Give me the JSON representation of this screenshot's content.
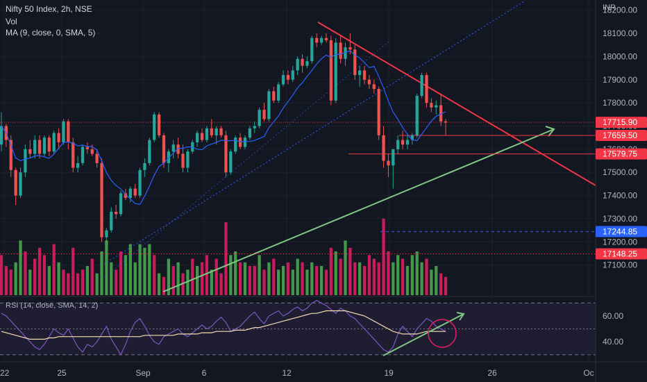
{
  "header": {
    "symbol_line": "Nifty 50 Index, 2h, NSE",
    "volume_label": "Vol",
    "ma_label": "MA (9, close, 0, SMA, 5)",
    "currency": "INR"
  },
  "rsi": {
    "label": "RSI (14, close, SMA, 14, 2)",
    "ticks": [
      "60.00",
      "40.00"
    ]
  },
  "price_axis": {
    "ticks": [
      "18200.00",
      "18100.00",
      "18000.00",
      "17900.00",
      "17800.00",
      "17700.00",
      "17600.00",
      "17500.00",
      "17400.00",
      "17300.00",
      "17200.00",
      "17100.00"
    ]
  },
  "price_labels": [
    {
      "value": 17715.9,
      "text": "17715.90",
      "color": "#f23645"
    },
    {
      "value": 17659.5,
      "text": "17659.50",
      "color": "#f23645"
    },
    {
      "value": 17579.75,
      "text": "17579.75",
      "color": "#f23645"
    },
    {
      "value": 17244.85,
      "text": "17244.85",
      "color": "#2962ff"
    },
    {
      "value": 17148.25,
      "text": "17148.25",
      "color": "#f23645"
    }
  ],
  "time_axis": {
    "ticks": [
      "22",
      "25",
      "Sep",
      "6",
      "12",
      "19",
      "26",
      "Oc"
    ]
  },
  "colors": {
    "up": "#26a69a",
    "down": "#ef5350",
    "vol_up": "#4caf50",
    "vol_down": "#e91e63",
    "ma": "#2962ff",
    "rsi": "#7e57c2",
    "rsi_ma": "#f5deb3",
    "trend_red": "#f23645",
    "trend_green": "#81c784",
    "channel_blue": "#2962ff"
  },
  "chart_data": {
    "type": "candlestick",
    "y_range": [
      17030,
      18220
    ],
    "candles": [
      [
        17620,
        17760,
        17590,
        17700
      ],
      [
        17700,
        17710,
        17610,
        17640
      ],
      [
        17640,
        17660,
        17480,
        17510
      ],
      [
        17510,
        17520,
        17360,
        17400
      ],
      [
        17400,
        17520,
        17390,
        17500
      ],
      [
        17500,
        17620,
        17480,
        17600
      ],
      [
        17600,
        17640,
        17560,
        17580
      ],
      [
        17580,
        17660,
        17560,
        17640
      ],
      [
        17640,
        17660,
        17560,
        17580
      ],
      [
        17580,
        17660,
        17570,
        17650
      ],
      [
        17650,
        17660,
        17570,
        17590
      ],
      [
        17590,
        17680,
        17580,
        17670
      ],
      [
        17670,
        17690,
        17600,
        17630
      ],
      [
        17630,
        17730,
        17620,
        17720
      ],
      [
        17720,
        17730,
        17600,
        17630
      ],
      [
        17630,
        17650,
        17500,
        17520
      ],
      [
        17520,
        17570,
        17500,
        17540
      ],
      [
        17540,
        17620,
        17530,
        17610
      ],
      [
        17610,
        17630,
        17580,
        17600
      ],
      [
        17600,
        17620,
        17570,
        17580
      ],
      [
        17580,
        17600,
        17520,
        17540
      ],
      [
        17540,
        17560,
        17200,
        17220
      ],
      [
        17220,
        17260,
        17180,
        17250
      ],
      [
        17250,
        17350,
        17240,
        17330
      ],
      [
        17330,
        17360,
        17300,
        17320
      ],
      [
        17320,
        17420,
        17310,
        17410
      ],
      [
        17410,
        17430,
        17380,
        17390
      ],
      [
        17390,
        17440,
        17370,
        17430
      ],
      [
        17430,
        17450,
        17390,
        17400
      ],
      [
        17400,
        17520,
        17390,
        17510
      ],
      [
        17510,
        17560,
        17480,
        17540
      ],
      [
        17540,
        17650,
        17530,
        17640
      ],
      [
        17640,
        17760,
        17630,
        17750
      ],
      [
        17750,
        17760,
        17650,
        17660
      ],
      [
        17660,
        17670,
        17520,
        17540
      ],
      [
        17540,
        17600,
        17500,
        17590
      ],
      [
        17590,
        17640,
        17560,
        17620
      ],
      [
        17620,
        17650,
        17560,
        17580
      ],
      [
        17580,
        17620,
        17500,
        17520
      ],
      [
        17520,
        17600,
        17500,
        17590
      ],
      [
        17590,
        17640,
        17580,
        17630
      ],
      [
        17630,
        17680,
        17610,
        17670
      ],
      [
        17670,
        17690,
        17630,
        17640
      ],
      [
        17640,
        17700,
        17630,
        17690
      ],
      [
        17690,
        17730,
        17650,
        17660
      ],
      [
        17660,
        17700,
        17620,
        17690
      ],
      [
        17690,
        17700,
        17650,
        17660
      ],
      [
        17660,
        17680,
        17480,
        17500
      ],
      [
        17500,
        17600,
        17490,
        17590
      ],
      [
        17590,
        17660,
        17580,
        17650
      ],
      [
        17650,
        17670,
        17600,
        17610
      ],
      [
        17610,
        17660,
        17600,
        17650
      ],
      [
        17650,
        17700,
        17640,
        17690
      ],
      [
        17690,
        17720,
        17670,
        17700
      ],
      [
        17700,
        17780,
        17690,
        17770
      ],
      [
        17770,
        17800,
        17720,
        17730
      ],
      [
        17730,
        17860,
        17720,
        17850
      ],
      [
        17850,
        17870,
        17800,
        17810
      ],
      [
        17810,
        17890,
        17800,
        17880
      ],
      [
        17880,
        17940,
        17870,
        17920
      ],
      [
        17920,
        17940,
        17880,
        17900
      ],
      [
        17900,
        17960,
        17890,
        17940
      ],
      [
        17940,
        18000,
        17920,
        17990
      ],
      [
        17990,
        18010,
        17930,
        17960
      ],
      [
        17960,
        18000,
        17950,
        17980
      ],
      [
        17980,
        18090,
        17970,
        18080
      ],
      [
        18080,
        18100,
        18040,
        18060
      ],
      [
        18060,
        18090,
        18050,
        18080
      ],
      [
        18080,
        18100,
        18060,
        18070
      ],
      [
        18070,
        18090,
        17790,
        17810
      ],
      [
        17810,
        18080,
        17800,
        18060
      ],
      [
        18060,
        18090,
        17970,
        17990
      ],
      [
        17990,
        18060,
        17960,
        18040
      ],
      [
        18040,
        18100,
        18010,
        18030
      ],
      [
        18030,
        18050,
        17900,
        17920
      ],
      [
        17920,
        17960,
        17870,
        17940
      ],
      [
        17940,
        17960,
        17880,
        17900
      ],
      [
        17900,
        17920,
        17860,
        17880
      ],
      [
        17880,
        17900,
        17840,
        17860
      ],
      [
        17860,
        17870,
        17640,
        17660
      ],
      [
        17660,
        17700,
        17520,
        17550
      ],
      [
        17550,
        17580,
        17480,
        17530
      ],
      [
        17530,
        17600,
        17430,
        17600
      ],
      [
        17600,
        17660,
        17580,
        17640
      ],
      [
        17640,
        17680,
        17600,
        17620
      ],
      [
        17620,
        17660,
        17600,
        17640
      ],
      [
        17640,
        17670,
        17620,
        17660
      ],
      [
        17660,
        17840,
        17650,
        17830
      ],
      [
        17830,
        17930,
        17820,
        17920
      ],
      [
        17920,
        17930,
        17780,
        17800
      ],
      [
        17800,
        17820,
        17760,
        17780
      ],
      [
        17780,
        17810,
        17750,
        17790
      ],
      [
        17790,
        17840,
        17700,
        17720
      ],
      [
        17720,
        17730,
        17660,
        17715
      ]
    ],
    "volumes": [
      [
        0.55,
        0
      ],
      [
        0.4,
        0
      ],
      [
        0.35,
        0
      ],
      [
        0.45,
        1
      ],
      [
        0.75,
        1
      ],
      [
        0.6,
        0
      ],
      [
        0.35,
        1
      ],
      [
        0.5,
        0
      ],
      [
        0.65,
        0
      ],
      [
        0.55,
        0
      ],
      [
        0.4,
        1
      ],
      [
        0.7,
        0
      ],
      [
        0.45,
        1
      ],
      [
        0.35,
        0
      ],
      [
        0.3,
        0
      ],
      [
        0.65,
        0
      ],
      [
        0.3,
        0
      ],
      [
        0.35,
        0
      ],
      [
        0.4,
        1
      ],
      [
        0.5,
        0
      ],
      [
        0.3,
        1
      ],
      [
        0.6,
        1
      ],
      [
        0.75,
        1
      ],
      [
        0.45,
        1
      ],
      [
        0.35,
        0
      ],
      [
        0.6,
        0
      ],
      [
        0.55,
        1
      ],
      [
        0.7,
        1
      ],
      [
        0.45,
        1
      ],
      [
        0.7,
        1
      ],
      [
        0.65,
        1
      ],
      [
        0.7,
        1
      ],
      [
        0.55,
        0
      ],
      [
        0.3,
        1
      ],
      [
        0.25,
        0
      ],
      [
        0.5,
        1
      ],
      [
        0.4,
        0
      ],
      [
        0.45,
        1
      ],
      [
        0.3,
        0
      ],
      [
        0.35,
        1
      ],
      [
        0.5,
        0
      ],
      [
        0.4,
        1
      ],
      [
        0.45,
        0
      ],
      [
        0.55,
        0
      ],
      [
        0.35,
        1
      ],
      [
        0.5,
        0
      ],
      [
        0.3,
        0
      ],
      [
        1.0,
        0
      ],
      [
        0.55,
        1
      ],
      [
        0.6,
        1
      ],
      [
        0.45,
        0
      ],
      [
        0.45,
        1
      ],
      [
        0.4,
        0
      ],
      [
        0.4,
        0
      ],
      [
        0.55,
        1
      ],
      [
        0.35,
        0
      ],
      [
        0.45,
        1
      ],
      [
        0.5,
        0
      ],
      [
        0.35,
        1
      ],
      [
        0.4,
        1
      ],
      [
        0.45,
        0
      ],
      [
        0.35,
        1
      ],
      [
        0.5,
        1
      ],
      [
        0.45,
        0
      ],
      [
        0.35,
        1
      ],
      [
        0.45,
        1
      ],
      [
        0.4,
        0
      ],
      [
        0.4,
        1
      ],
      [
        0.35,
        0
      ],
      [
        0.65,
        0
      ],
      [
        0.6,
        1
      ],
      [
        0.5,
        0
      ],
      [
        0.75,
        1
      ],
      [
        0.65,
        0
      ],
      [
        0.45,
        0
      ],
      [
        0.45,
        1
      ],
      [
        0.4,
        0
      ],
      [
        0.55,
        0
      ],
      [
        0.5,
        0
      ],
      [
        0.45,
        0
      ],
      [
        1.05,
        0
      ],
      [
        0.6,
        0
      ],
      [
        0.45,
        1
      ],
      [
        0.55,
        1
      ],
      [
        0.5,
        0
      ],
      [
        0.4,
        1
      ],
      [
        0.55,
        1
      ],
      [
        0.6,
        1
      ],
      [
        0.45,
        1
      ],
      [
        0.5,
        0
      ],
      [
        0.35,
        1
      ],
      [
        0.4,
        1
      ],
      [
        0.3,
        0
      ],
      [
        0.25,
        0
      ]
    ],
    "rsi": {
      "levels": [
        70,
        50,
        30
      ],
      "y_range": [
        25,
        75
      ],
      "values": [
        62,
        60,
        56,
        52,
        48,
        44,
        40,
        36,
        34,
        38,
        44,
        50,
        47,
        45,
        50,
        43,
        36,
        32,
        38,
        36,
        40,
        46,
        52,
        42,
        36,
        30,
        38,
        48,
        55,
        58,
        52,
        45,
        40,
        38,
        44,
        46,
        48,
        50,
        46,
        44,
        47,
        50,
        53,
        50,
        52,
        56,
        59,
        55,
        48,
        50,
        52,
        56,
        60,
        63,
        58,
        54,
        60,
        62,
        64,
        60,
        62,
        65,
        67,
        64,
        66,
        70,
        72,
        70,
        68,
        65,
        62,
        66,
        64,
        60,
        58,
        54,
        50,
        46,
        42,
        38,
        34,
        32,
        36,
        46,
        52,
        48,
        44,
        50,
        54,
        58,
        56,
        52,
        50,
        48
      ],
      "ma_values": [
        48,
        47,
        46,
        45,
        44,
        43,
        42,
        42,
        42,
        42,
        43,
        43,
        44,
        44,
        44,
        44,
        44,
        44,
        44,
        44,
        44,
        44,
        44,
        44,
        44,
        44,
        44,
        44,
        44,
        44,
        45,
        45,
        45,
        45,
        45,
        45,
        45,
        46,
        46,
        46,
        46,
        46,
        47,
        47,
        47,
        48,
        48,
        48,
        48,
        49,
        49,
        49,
        50,
        51,
        51,
        52,
        53,
        54,
        55,
        56,
        57,
        58,
        59,
        60,
        61,
        62,
        62,
        63,
        64,
        64,
        64,
        64,
        64,
        63,
        62,
        61,
        60,
        58,
        56,
        54,
        52,
        50,
        48,
        47,
        46,
        46,
        46,
        46,
        47,
        48,
        48,
        48,
        48,
        48
      ]
    }
  }
}
